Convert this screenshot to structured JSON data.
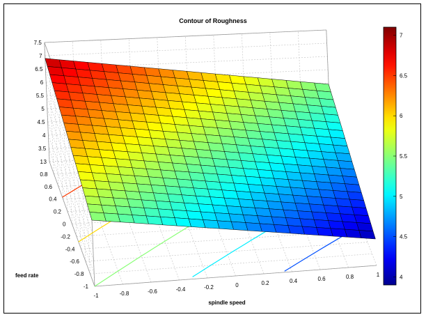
{
  "chart_data": {
    "type": "surface",
    "title": "Contour of Roughness",
    "xlabel": "spindle speed",
    "ylabel": "feed rate",
    "zlabel": "",
    "x_ticks": [
      "-1",
      "-0.8",
      "-0.6",
      "-0.4",
      "-0.2",
      "0",
      "0.2",
      "0.4",
      "0.6",
      "0.8",
      "1"
    ],
    "y_ticks": [
      "-1",
      "-0.8",
      "-0.6",
      "-0.4",
      "-0.2",
      "0",
      "0.2",
      "0.4",
      "0.6",
      "0.8",
      "1"
    ],
    "z_ticks": [
      "3",
      "3.5",
      "4",
      "4.5",
      "5",
      "5.5",
      "6",
      "6.5",
      "7",
      "7.5"
    ],
    "xlim": [
      -1,
      1
    ],
    "ylim": [
      -1,
      1
    ],
    "zlim": [
      3,
      7.5
    ],
    "colorbar": {
      "ticks": [
        "4",
        "4.5",
        "5",
        "5.5",
        "6",
        "6.5",
        "7"
      ],
      "range": [
        3.9,
        7.1
      ]
    },
    "grid_size": 20,
    "surface_corners": {
      "x_min_y_max": 6.9,
      "x_max_y_max": 5.45,
      "x_min_y_min": 5.5,
      "x_max_y_min": 4.0
    },
    "colormap": "jet",
    "colors": {
      "jet": [
        "#00008f",
        "#0000ff",
        "#00ffff",
        "#ffff00",
        "#ff0000",
        "#800000"
      ],
      "grid": "#c8c8c8",
      "mesh_edge": "#000000"
    }
  }
}
